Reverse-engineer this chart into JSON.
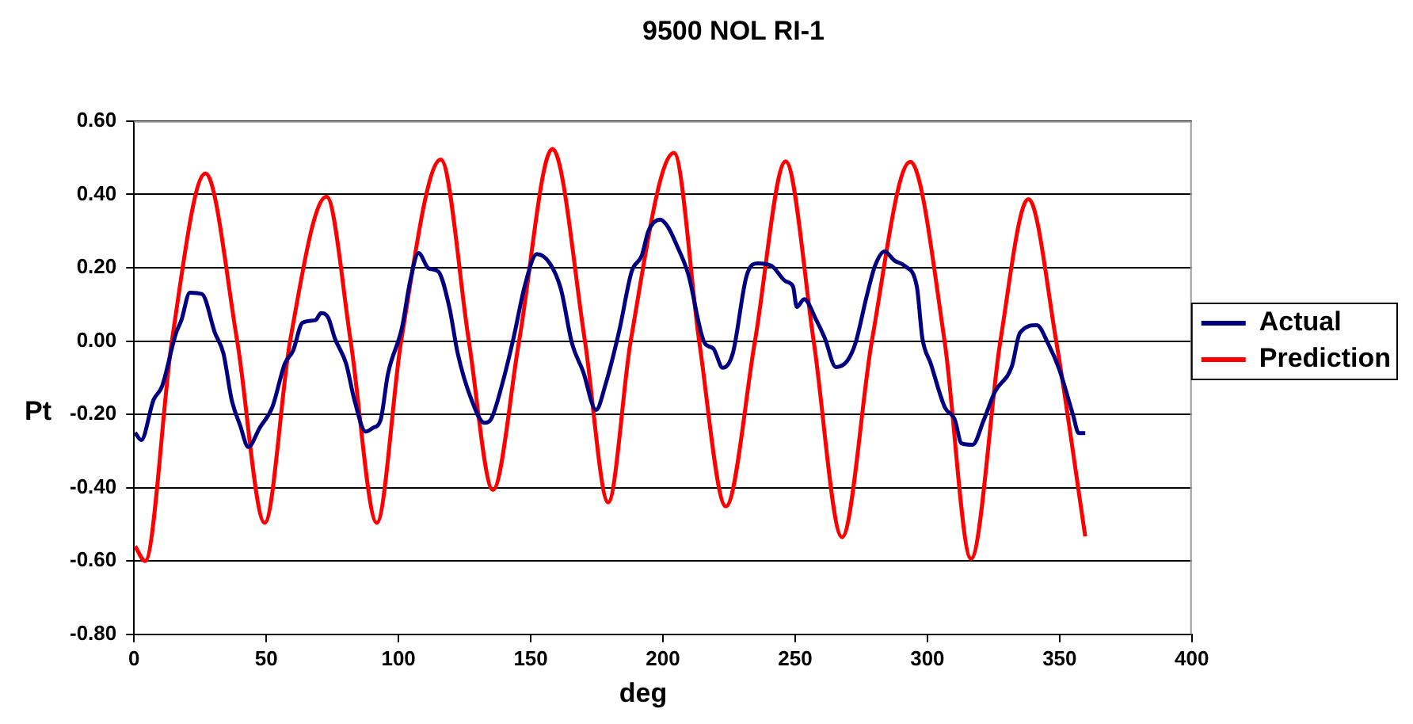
{
  "chart_data": {
    "type": "line",
    "title": "9500 NOL RI-1",
    "xlabel": "deg",
    "ylabel": "Pt",
    "xlim": [
      0,
      400
    ],
    "xticks": [
      0,
      50,
      100,
      150,
      200,
      250,
      300,
      350,
      400
    ],
    "ylim": [
      -0.8,
      0.6
    ],
    "yticks": [
      {
        "value": -0.8,
        "label": "-0.80"
      },
      {
        "value": -0.6,
        "label": "-0.60"
      },
      {
        "value": -0.4,
        "label": "-0.40"
      },
      {
        "value": -0.2,
        "label": "-0.20"
      },
      {
        "value": 0,
        "label": "0.00"
      },
      {
        "value": 0.2,
        "label": "0.20"
      },
      {
        "value": 0.4,
        "label": "0.40"
      },
      {
        "value": 0.6,
        "label": "0.60"
      }
    ],
    "grid": "y",
    "legend": "right",
    "marker": "none",
    "line_style": "solid",
    "series": [
      {
        "name": "Actual",
        "color": "#000080",
        "x": [
          0.4,
          2.7,
          7.4,
          10.5,
          15.8,
          17.9,
          21.1,
          25.7,
          30.6,
          33.8,
          36.9,
          40.1,
          43.2,
          47.5,
          52.3,
          57,
          60.1,
          63.7,
          68.6,
          70.7,
          73.4,
          75.9,
          80.2,
          83.3,
          87.6,
          90.3,
          93.2,
          96,
          101.3,
          104.4,
          107.6,
          111.4,
          115,
          119.2,
          122.4,
          127.6,
          132.5,
          135,
          139.2,
          143.5,
          147.7,
          152.3,
          157.2,
          161.4,
          165.6,
          169.8,
          174.7,
          178.3,
          183.5,
          188.2,
          192,
          194.5,
          199,
          202,
          205.3,
          209.5,
          215.8,
          219,
          222.6,
          226.4,
          231.6,
          235.9,
          241.1,
          246.4,
          249.2,
          250.6,
          253.4,
          258,
          261.2,
          265.4,
          269.6,
          272.8,
          277,
          280.2,
          283.8,
          287.6,
          291.4,
          296,
          298.1,
          301.3,
          306.6,
          310.3,
          312.9,
          317.1,
          321.3,
          325.5,
          331.9,
          335,
          341.4,
          345.6,
          349.8,
          355.1,
          357.2,
          359.7
        ],
        "values": [
          -0.25,
          -0.27,
          -0.16,
          -0.125,
          0.02,
          0.057,
          0.132,
          0.128,
          0.022,
          -0.034,
          -0.16,
          -0.23,
          -0.289,
          -0.237,
          -0.18,
          -0.062,
          -0.027,
          0.05,
          0.057,
          0.076,
          0.064,
          0.008,
          -0.062,
          -0.16,
          -0.247,
          -0.237,
          -0.216,
          -0.09,
          0.036,
          0.163,
          0.24,
          0.198,
          0.19,
          0.093,
          -0.034,
          -0.16,
          -0.223,
          -0.213,
          -0.118,
          0.008,
          0.149,
          0.237,
          0.212,
          0.142,
          -0.006,
          -0.083,
          -0.188,
          -0.118,
          0.029,
          0.19,
          0.233,
          0.3,
          0.331,
          0.31,
          0.26,
          0.184,
          -0.006,
          -0.02,
          -0.073,
          -0.034,
          0.177,
          0.212,
          0.205,
          0.163,
          0.149,
          0.093,
          0.114,
          0.057,
          0.008,
          -0.071,
          -0.055,
          -0.006,
          0.121,
          0.205,
          0.244,
          0.219,
          0.205,
          0.149,
          0.008,
          -0.062,
          -0.181,
          -0.213,
          -0.279,
          -0.283,
          -0.216,
          -0.139,
          -0.07,
          0.022,
          0.043,
          -0.006,
          -0.076,
          -0.202,
          -0.251,
          -0.251
        ]
      },
      {
        "name": "Prediction",
        "color": "#ff0000",
        "x": [
          0.4,
          4.2,
          14.3,
          27,
          39,
          49.4,
          59,
          72.8,
          81.9,
          91.8,
          101,
          116,
          126.6,
          135.7,
          145.6,
          158.2,
          170.5,
          179.3,
          187.8,
          204.2,
          213.7,
          223.8,
          234.8,
          246.4,
          257,
          267.7,
          279,
          293.5,
          306.5,
          316.5,
          327.6,
          338.2,
          348.7,
          359.7
        ],
        "values": [
          -0.56,
          -0.6,
          0,
          0.457,
          0,
          -0.496,
          0,
          0.394,
          0,
          -0.496,
          0,
          0.495,
          0,
          -0.406,
          0,
          0.524,
          0,
          -0.44,
          0,
          0.513,
          0,
          -0.451,
          0,
          0.49,
          0,
          -0.535,
          0,
          0.489,
          0,
          -0.594,
          0,
          0.387,
          0,
          -0.533
        ]
      }
    ]
  }
}
